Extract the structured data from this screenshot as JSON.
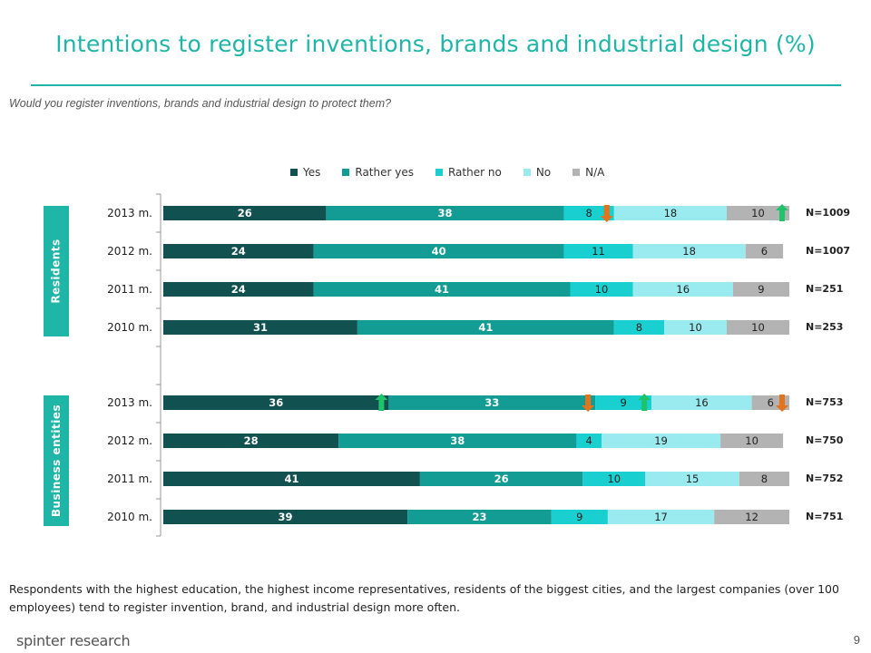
{
  "slide": {
    "title": "Intentions to register inventions, brands and industrial design (%)",
    "question": "Would you register inventions, brands and industrial design to protect them?",
    "footnote": "Respondents with the highest education, the highest income representatives, residents of the biggest cities, and the largest companies (over 100 employees) tend to register invention, brand, and industrial design more often.",
    "brand": "spinter research",
    "page_number": "9"
  },
  "colors": {
    "accent": "#1fb5a7",
    "arrow_up": "#1fc46a",
    "arrow_down": "#e3731c"
  },
  "chart_data": {
    "type": "bar",
    "orientation": "horizontal",
    "stacked": true,
    "xlim": [
      0,
      100
    ],
    "legend": "top",
    "series": [
      {
        "name": "Yes",
        "color": "#11514f"
      },
      {
        "name": "Rather yes",
        "color": "#129c93"
      },
      {
        "name": "Rather no",
        "color": "#19cfcf"
      },
      {
        "name": "No",
        "color": "#9aebf0"
      },
      {
        "name": "N/A",
        "color": "#b3b3b3"
      }
    ],
    "groups": [
      {
        "name": "Residents",
        "rows": [
          {
            "label": "2013 m.",
            "values": [
              26,
              38,
              8,
              18,
              10
            ],
            "n": "N=1009",
            "arrows": [
              {
                "series": 2,
                "dir": "down"
              },
              {
                "series": 4,
                "dir": "up"
              }
            ]
          },
          {
            "label": "2012 m.",
            "values": [
              24,
              40,
              11,
              18,
              6
            ],
            "n": "N=1007",
            "arrows": []
          },
          {
            "label": "2011 m.",
            "values": [
              24,
              41,
              10,
              16,
              9
            ],
            "n": "N=251",
            "arrows": []
          },
          {
            "label": "2010 m.",
            "values": [
              31,
              41,
              8,
              10,
              10
            ],
            "n": "N=253",
            "arrows": []
          }
        ]
      },
      {
        "name": "Business entities",
        "rows": [
          {
            "label": "2013 m.",
            "values": [
              36,
              33,
              9,
              16,
              6
            ],
            "n": "N=753",
            "arrows": [
              {
                "series": 0,
                "dir": "up"
              },
              {
                "series": 1,
                "dir": "down"
              },
              {
                "series": 2,
                "dir": "up"
              },
              {
                "series": 4,
                "dir": "down"
              }
            ]
          },
          {
            "label": "2012 m.",
            "values": [
              28,
              38,
              4,
              19,
              10
            ],
            "n": "N=750",
            "arrows": []
          },
          {
            "label": "2011 m.",
            "values": [
              41,
              26,
              10,
              15,
              8
            ],
            "n": "N=752",
            "arrows": []
          },
          {
            "label": "2010 m.",
            "values": [
              39,
              23,
              9,
              17,
              12
            ],
            "n": "N=751",
            "arrows": []
          }
        ]
      }
    ]
  }
}
